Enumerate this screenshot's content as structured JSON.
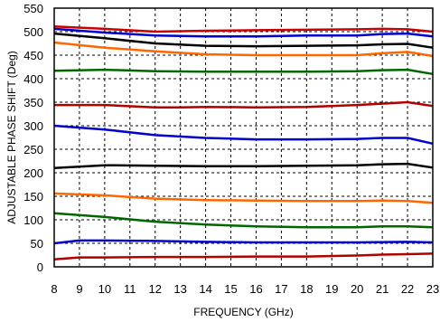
{
  "chart_data": {
    "type": "line",
    "title": "",
    "xlabel": "FREQUENCY (GHz)",
    "ylabel": "ADJUSTABLE PHASE SHIFT (Deg)",
    "xlim": [
      8,
      23
    ],
    "ylim": [
      0,
      550
    ],
    "xticks": [
      "8",
      "9",
      "10",
      "11",
      "12",
      "13",
      "14",
      "15",
      "16",
      "17",
      "18",
      "19",
      "20",
      "21",
      "22",
      "23"
    ],
    "yticks": [
      "0",
      "50",
      "100",
      "150",
      "200",
      "250",
      "300",
      "350",
      "400",
      "450",
      "500",
      "550"
    ],
    "grid": "dashed",
    "legend": "none",
    "series": [
      {
        "color": "#cc0000",
        "points": [
          [
            8,
            511
          ],
          [
            10,
            506
          ],
          [
            12,
            500
          ],
          [
            14,
            502
          ],
          [
            16,
            503
          ],
          [
            18,
            504
          ],
          [
            20,
            505
          ],
          [
            21,
            506
          ],
          [
            22,
            505
          ],
          [
            23,
            500
          ]
        ]
      },
      {
        "color": "#0000cc",
        "points": [
          [
            8,
            506
          ],
          [
            10,
            498
          ],
          [
            12,
            492
          ],
          [
            14,
            490
          ],
          [
            16,
            490
          ],
          [
            18,
            492
          ],
          [
            20,
            492
          ],
          [
            21,
            495
          ],
          [
            22,
            496
          ],
          [
            23,
            490
          ]
        ]
      },
      {
        "color": "#000000",
        "points": [
          [
            8,
            496
          ],
          [
            10,
            486
          ],
          [
            12,
            475
          ],
          [
            14,
            470
          ],
          [
            16,
            469
          ],
          [
            18,
            470
          ],
          [
            20,
            471
          ],
          [
            21,
            473
          ],
          [
            22,
            474
          ],
          [
            23,
            466
          ]
        ]
      },
      {
        "color": "#ff6600",
        "points": [
          [
            8,
            477
          ],
          [
            10,
            466
          ],
          [
            12,
            458
          ],
          [
            14,
            452
          ],
          [
            16,
            450
          ],
          [
            18,
            450
          ],
          [
            20,
            450
          ],
          [
            21,
            454
          ],
          [
            22,
            457
          ],
          [
            23,
            448
          ]
        ]
      },
      {
        "color": "#006600",
        "points": [
          [
            8,
            417
          ],
          [
            10,
            419
          ],
          [
            12,
            416
          ],
          [
            14,
            415
          ],
          [
            16,
            415
          ],
          [
            18,
            415
          ],
          [
            20,
            416
          ],
          [
            21,
            418
          ],
          [
            22,
            419
          ],
          [
            23,
            410
          ]
        ]
      },
      {
        "color": "#b00000",
        "points": [
          [
            8,
            344
          ],
          [
            10,
            344
          ],
          [
            12,
            339
          ],
          [
            13,
            339
          ],
          [
            14,
            340
          ],
          [
            16,
            339
          ],
          [
            18,
            340
          ],
          [
            20,
            344
          ],
          [
            21,
            347
          ],
          [
            22,
            350
          ],
          [
            23,
            342
          ]
        ]
      },
      {
        "color": "#0000cc",
        "points": [
          [
            8,
            300
          ],
          [
            10,
            292
          ],
          [
            12,
            280
          ],
          [
            14,
            274
          ],
          [
            16,
            271
          ],
          [
            18,
            271
          ],
          [
            20,
            272
          ],
          [
            21,
            274
          ],
          [
            22,
            274
          ],
          [
            23,
            262
          ]
        ]
      },
      {
        "color": "#000000",
        "points": [
          [
            8,
            210
          ],
          [
            10,
            216
          ],
          [
            12,
            215
          ],
          [
            14,
            214
          ],
          [
            16,
            214
          ],
          [
            18,
            215
          ],
          [
            20,
            216
          ],
          [
            21,
            218
          ],
          [
            22,
            219
          ],
          [
            23,
            211
          ]
        ]
      },
      {
        "color": "#ff6600",
        "points": [
          [
            8,
            156
          ],
          [
            10,
            152
          ],
          [
            12,
            145
          ],
          [
            14,
            142
          ],
          [
            16,
            141
          ],
          [
            18,
            140
          ],
          [
            20,
            140
          ],
          [
            21,
            141
          ],
          [
            22,
            140
          ],
          [
            23,
            136
          ]
        ]
      },
      {
        "color": "#006600",
        "points": [
          [
            8,
            114
          ],
          [
            10,
            106
          ],
          [
            12,
            96
          ],
          [
            14,
            90
          ],
          [
            16,
            86
          ],
          [
            18,
            84
          ],
          [
            20,
            84
          ],
          [
            21,
            86
          ],
          [
            22,
            86
          ],
          [
            23,
            84
          ]
        ]
      },
      {
        "color": "#0000cc",
        "points": [
          [
            8,
            50
          ],
          [
            9,
            56
          ],
          [
            10,
            56
          ],
          [
            12,
            55
          ],
          [
            14,
            53
          ],
          [
            16,
            52
          ],
          [
            18,
            52
          ],
          [
            20,
            52
          ],
          [
            22,
            53
          ],
          [
            23,
            52
          ]
        ]
      },
      {
        "color": "#b00000",
        "points": [
          [
            8,
            16
          ],
          [
            9,
            20
          ],
          [
            10,
            20
          ],
          [
            12,
            21
          ],
          [
            14,
            21
          ],
          [
            16,
            22
          ],
          [
            18,
            22
          ],
          [
            20,
            24
          ],
          [
            21,
            26
          ],
          [
            22,
            27
          ],
          [
            23,
            28
          ]
        ]
      }
    ]
  }
}
